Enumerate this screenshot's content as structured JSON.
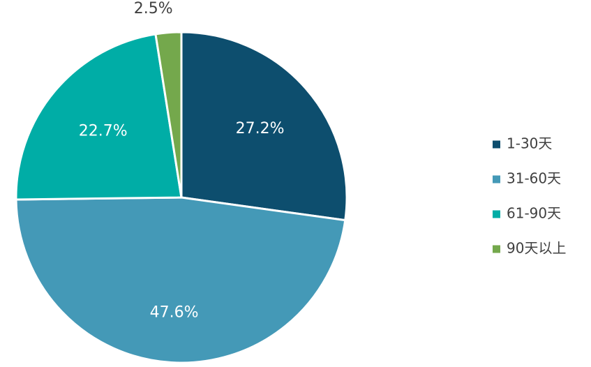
{
  "chart_data": {
    "type": "pie",
    "title": "",
    "categories": [
      "1-30天",
      "31-60天",
      "61-90天",
      "90天以上"
    ],
    "values": [
      27.2,
      47.6,
      22.7,
      2.5
    ],
    "labels": [
      "27.2%",
      "47.6%",
      "22.7%",
      "2.5%"
    ],
    "colors": [
      "#0d4e6e",
      "#4499b7",
      "#00ada6",
      "#74a84c"
    ],
    "label_colors": [
      "#ffffff",
      "#ffffff",
      "#ffffff",
      "#404040"
    ],
    "start_angle": "12 o'clock",
    "direction": "clockwise",
    "legend_position": "right"
  }
}
